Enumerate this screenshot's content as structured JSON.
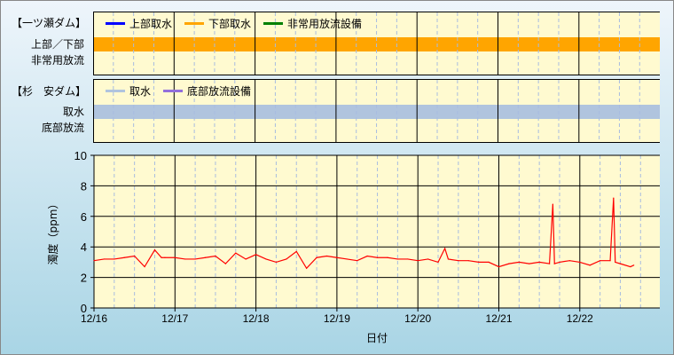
{
  "panel1": {
    "title": "【一ツ瀬ダム】",
    "row_labels": [
      "上部／下部",
      "非常用放流"
    ],
    "legend": [
      {
        "label": "上部取水",
        "color": "#0000ff"
      },
      {
        "label": "下部取水",
        "color": "#ffa500"
      },
      {
        "label": "非常用放流設備",
        "color": "#008000"
      }
    ],
    "bar_color": "#ffa500"
  },
  "panel2": {
    "title": "【杉　安ダム】",
    "row_labels": [
      "取水",
      "底部放流"
    ],
    "legend": [
      {
        "label": "取水",
        "color": "#b0c4de"
      },
      {
        "label": "底部放流設備",
        "color": "#9370db"
      }
    ],
    "bar_color": "#b0c4de"
  },
  "chart_data": {
    "type": "line",
    "ylabel": "濁度（ppm）",
    "xlabel": "日付",
    "ylim": [
      0,
      10
    ],
    "yticks": [
      "0",
      "2",
      "4",
      "6",
      "8",
      "10"
    ],
    "xticks": [
      "12/16",
      "12/17",
      "12/18",
      "12/19",
      "12/20",
      "12/21",
      "12/22"
    ],
    "xlim": [
      "12/16 00:00",
      "12/23 00:00"
    ],
    "grid": true,
    "line_color": "#ff0000",
    "x": [
      "12/16 00:00",
      "12/16 03:00",
      "12/16 06:00",
      "12/16 09:00",
      "12/16 12:00",
      "12/16 15:00",
      "12/16 18:00",
      "12/16 20:00",
      "12/16 21:00",
      "12/17 00:00",
      "12/17 03:00",
      "12/17 06:00",
      "12/17 09:00",
      "12/17 12:00",
      "12/17 15:00",
      "12/17 18:00",
      "12/17 21:00",
      "12/18 00:00",
      "12/18 03:00",
      "12/18 06:00",
      "12/18 09:00",
      "12/18 12:00",
      "12/18 15:00",
      "12/18 18:00",
      "12/18 21:00",
      "12/19 00:00",
      "12/19 03:00",
      "12/19 06:00",
      "12/19 09:00",
      "12/19 12:00",
      "12/19 15:00",
      "12/19 18:00",
      "12/19 21:00",
      "12/20 00:00",
      "12/20 03:00",
      "12/20 06:00",
      "12/20 08:00",
      "12/20 09:00",
      "12/20 12:00",
      "12/20 15:00",
      "12/20 18:00",
      "12/20 21:00",
      "12/21 00:00",
      "12/21 03:00",
      "12/21 06:00",
      "12/21 09:00",
      "12/21 12:00",
      "12/21 15:00",
      "12/21 16:00",
      "12/21 16:30",
      "12/21 18:00",
      "12/21 21:00",
      "12/22 00:00",
      "12/22 03:00",
      "12/22 06:00",
      "12/22 09:00",
      "12/22 10:00",
      "12/22 10:30",
      "12/22 12:00",
      "12/22 15:00",
      "12/22 16:00"
    ],
    "y": [
      3.1,
      3.2,
      3.2,
      3.3,
      3.4,
      2.7,
      3.8,
      3.3,
      3.3,
      3.3,
      3.2,
      3.2,
      3.3,
      3.4,
      2.9,
      3.6,
      3.2,
      3.5,
      3.2,
      3.0,
      3.2,
      3.7,
      2.6,
      3.3,
      3.4,
      3.3,
      3.2,
      3.1,
      3.4,
      3.3,
      3.3,
      3.2,
      3.2,
      3.1,
      3.2,
      3.0,
      3.9,
      3.2,
      3.1,
      3.1,
      3.0,
      3.0,
      2.7,
      2.9,
      3.0,
      2.9,
      3.0,
      2.9,
      6.8,
      2.9,
      3.0,
      3.1,
      3.0,
      2.8,
      3.1,
      3.1,
      7.2,
      3.0,
      2.9,
      2.7,
      2.8
    ]
  }
}
